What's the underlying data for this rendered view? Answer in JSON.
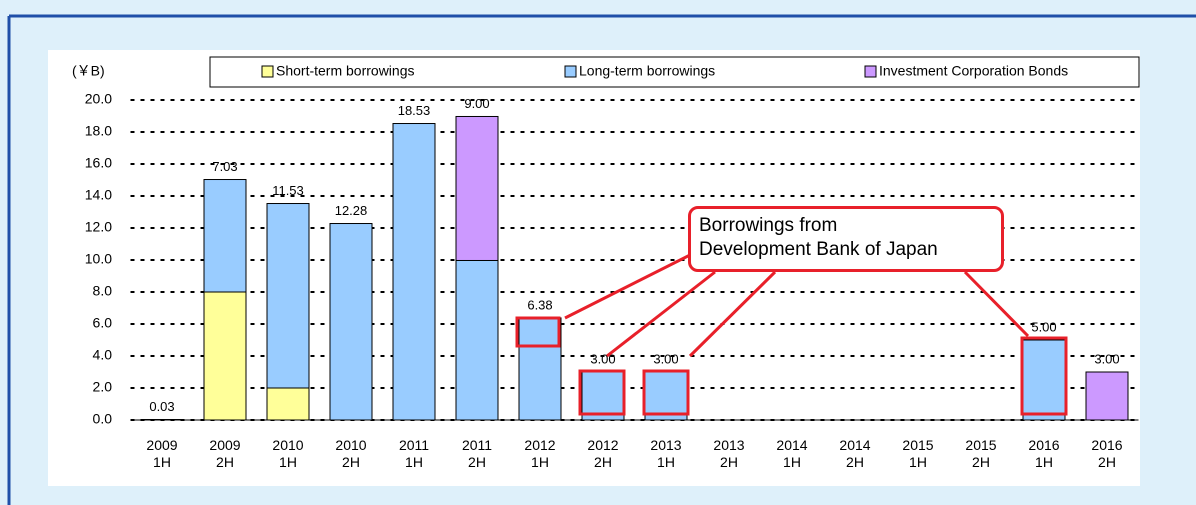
{
  "chart_data": {
    "type": "bar",
    "stacked": true,
    "y_unit_label": "(￥B)",
    "categories": [
      "2009 1H",
      "2009 2H",
      "2010 1H",
      "2010 2H",
      "2011 1H",
      "2011 2H",
      "2012 1H",
      "2012 2H",
      "2013 1H",
      "2013 2H",
      "2014 1H",
      "2014 2H",
      "2015 1H",
      "2015 2H",
      "2016 1H",
      "2016 2H"
    ],
    "series": [
      {
        "name": "Short-term borrowings",
        "color": "#ffff99",
        "values": [
          null,
          8,
          2,
          null,
          null,
          null,
          null,
          null,
          null,
          null,
          null,
          null,
          null,
          null,
          null,
          null
        ],
        "value_labels": [
          null,
          "8.00",
          "2.00",
          null,
          null,
          null,
          null,
          null,
          null,
          null,
          null,
          null,
          null,
          null,
          null,
          null
        ]
      },
      {
        "name": "Long-term borrowings",
        "color": "#99ccff",
        "values": [
          0.03,
          7.03,
          11.53,
          12.28,
          18.53,
          9.97,
          6.38,
          3,
          3,
          null,
          null,
          null,
          null,
          null,
          5,
          null
        ],
        "value_labels": [
          "0.03",
          "7.03",
          "11.53",
          "12.28",
          "18.53",
          "9.97",
          "6.38",
          "3.00",
          "3.00",
          null,
          null,
          null,
          null,
          null,
          "5.00",
          null
        ]
      },
      {
        "name": "Investment Corporation Bonds",
        "color": "#cc99ff",
        "values": [
          null,
          null,
          null,
          null,
          null,
          9,
          null,
          null,
          null,
          null,
          null,
          null,
          null,
          null,
          null,
          3
        ],
        "value_labels": [
          null,
          null,
          null,
          null,
          null,
          "9.00",
          null,
          null,
          null,
          null,
          null,
          null,
          null,
          null,
          null,
          "3.00"
        ]
      }
    ],
    "ylim": [
      0,
      20
    ],
    "yticks": [
      {
        "value": 0,
        "label": "0.0"
      },
      {
        "value": 2,
        "label": "2.0"
      },
      {
        "value": 4,
        "label": "4.0"
      },
      {
        "value": 6,
        "label": "6.0"
      },
      {
        "value": 8,
        "label": "8.0"
      },
      {
        "value": 10,
        "label": "10.0"
      },
      {
        "value": 12,
        "label": "12.0"
      },
      {
        "value": 14,
        "label": "14.0"
      },
      {
        "value": 16,
        "label": "16.0"
      },
      {
        "value": 18,
        "label": "18.0"
      },
      {
        "value": 20,
        "label": "20.0"
      }
    ],
    "grid": true,
    "annotations": [
      "Borrowings from",
      "Development Bank of Japan"
    ]
  }
}
